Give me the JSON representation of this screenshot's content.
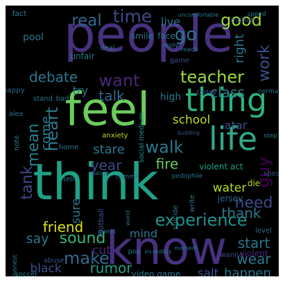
{
  "wordcloud": {
    "background": "#000000",
    "palette": [
      "#440154",
      "#46327e",
      "#365c8d",
      "#277f8e",
      "#1fa187",
      "#4ac16d",
      "#a0da39",
      "#fde725"
    ],
    "words": [
      {
        "text": "people",
        "color": "#46327e"
      },
      {
        "text": "feel",
        "color": "#6ccd5a"
      },
      {
        "text": "think",
        "color": "#1fa187"
      },
      {
        "text": "know",
        "color": "#46327e"
      },
      {
        "text": "thing",
        "color": "#2db27d"
      },
      {
        "text": "life",
        "color": "#31a88a"
      },
      {
        "text": "time",
        "color": "#3e4a89"
      },
      {
        "text": "real",
        "color": "#31688e"
      },
      {
        "text": "good",
        "color": "#9bd93c"
      },
      {
        "text": "go",
        "color": "#2c728e"
      },
      {
        "text": "work",
        "color": "#3b528b"
      },
      {
        "text": "right",
        "color": "#2a788e"
      },
      {
        "text": "want",
        "color": "#482878"
      },
      {
        "text": "teacher",
        "color": "#9bd93c"
      },
      {
        "text": "debate",
        "color": "#2a788e"
      },
      {
        "text": "talk",
        "color": "#31688e"
      },
      {
        "text": "heart",
        "color": "#2a788e"
      },
      {
        "text": "mean",
        "color": "#26828e"
      },
      {
        "text": "come",
        "color": "#26828e"
      },
      {
        "text": "stare",
        "color": "#2a788e"
      },
      {
        "text": "walk",
        "color": "#2a788e"
      },
      {
        "text": "class",
        "color": "#26828e"
      },
      {
        "text": "school",
        "color": "#b5de2b"
      },
      {
        "text": "fire",
        "color": "#6ccd5a"
      },
      {
        "text": "experience",
        "color": "#21918c"
      },
      {
        "text": "friend",
        "color": "#dde318"
      },
      {
        "text": "need",
        "color": "#3e4a89"
      },
      {
        "text": "guy",
        "color": "#440154"
      },
      {
        "text": "thank",
        "color": "#2a788e"
      },
      {
        "text": "water",
        "color": "#b5de2b"
      },
      {
        "text": "tank",
        "color": "#3e4a89"
      },
      {
        "text": "year",
        "color": "#3e4a89"
      },
      {
        "text": "sound",
        "color": "#35b779"
      },
      {
        "text": "say",
        "color": "#2a788e"
      },
      {
        "text": "make",
        "color": "#31688e"
      },
      {
        "text": "cutie",
        "color": "#482878"
      },
      {
        "text": "rumor",
        "color": "#1fa187"
      },
      {
        "text": "start",
        "color": "#2a788e"
      },
      {
        "text": "wear",
        "color": "#2a788e"
      },
      {
        "text": "happen",
        "color": "#2a788e"
      },
      {
        "text": "salt",
        "color": "#3b528b"
      },
      {
        "text": "video game",
        "color": "#2a788e"
      },
      {
        "text": "black",
        "color": "#3b528b"
      },
      {
        "text": "mind",
        "color": "#2a788e"
      },
      {
        "text": "sure",
        "color": "#2a788e"
      },
      {
        "text": "atar",
        "color": "#3b528b"
      },
      {
        "text": "violent act",
        "color": "#1fa187"
      },
      {
        "text": "live",
        "color": "#2a788e"
      },
      {
        "text": "smile",
        "color": "#2a788e"
      },
      {
        "text": "face",
        "color": "#2a788e"
      },
      {
        "text": "pool",
        "color": "#2a788e"
      },
      {
        "text": "try",
        "color": "#2a788e"
      },
      {
        "text": "high",
        "color": "#2a788e"
      },
      {
        "text": "anxiety",
        "color": "#b5de2b"
      },
      {
        "text": "social medium",
        "color": "#21918c"
      },
      {
        "text": "jersey",
        "color": "#31688e"
      },
      {
        "text": "football",
        "color": "#3b528b"
      },
      {
        "text": "violent",
        "color": "#482878"
      },
      {
        "text": "soccer",
        "color": "#2a788e"
      },
      {
        "text": "wanna",
        "color": "#3e4a89"
      },
      {
        "text": "level",
        "color": "#31688e"
      },
      {
        "text": "die",
        "color": "#b5de2b"
      },
      {
        "text": "happy",
        "color": "#31688e"
      },
      {
        "text": "unfair",
        "color": "#2a788e"
      },
      {
        "text": "deal",
        "color": "#2a788e"
      },
      {
        "text": "fact",
        "color": "#2a788e"
      },
      {
        "text": "game",
        "color": "#3b528b"
      },
      {
        "text": "alex",
        "color": "#2a788e"
      },
      {
        "text": "today",
        "color": "#3b528b"
      },
      {
        "text": "motion",
        "color": "#3b528b"
      },
      {
        "text": "normal",
        "color": "#2a788e"
      },
      {
        "text": "speak",
        "color": "#3b528b"
      },
      {
        "text": "suicide",
        "color": "#2a788e"
      },
      {
        "text": "abuse",
        "color": "#3b528b"
      },
      {
        "text": "bad",
        "color": "#2a788e"
      },
      {
        "text": "stand",
        "color": "#2a788e"
      },
      {
        "text": "pop",
        "color": "#2a788e"
      },
      {
        "text": "honest",
        "color": "#2a788e"
      },
      {
        "text": "moment",
        "color": "#2a788e"
      },
      {
        "text": "tell",
        "color": "#2a788e"
      },
      {
        "text": "note",
        "color": "#2a788e"
      },
      {
        "text": "home",
        "color": "#2a788e"
      },
      {
        "text": "guess",
        "color": "#2a788e"
      },
      {
        "text": "speed",
        "color": "#2a788e"
      },
      {
        "text": "reach",
        "color": "#2a788e"
      },
      {
        "text": "reply",
        "color": "#2a788e"
      },
      {
        "text": "step",
        "color": "#2a788e"
      },
      {
        "text": "building",
        "color": "#3b528b"
      },
      {
        "text": "commit",
        "color": "#2a788e"
      },
      {
        "text": "pedophile",
        "color": "#2a788e"
      },
      {
        "text": "change",
        "color": "#2a788e"
      },
      {
        "text": "write",
        "color": "#2a788e"
      },
      {
        "text": "incredibly",
        "color": "#2a788e"
      },
      {
        "text": "uncomfortable",
        "color": "#2a788e"
      },
      {
        "text": "world",
        "color": "#2a788e"
      }
    ]
  }
}
